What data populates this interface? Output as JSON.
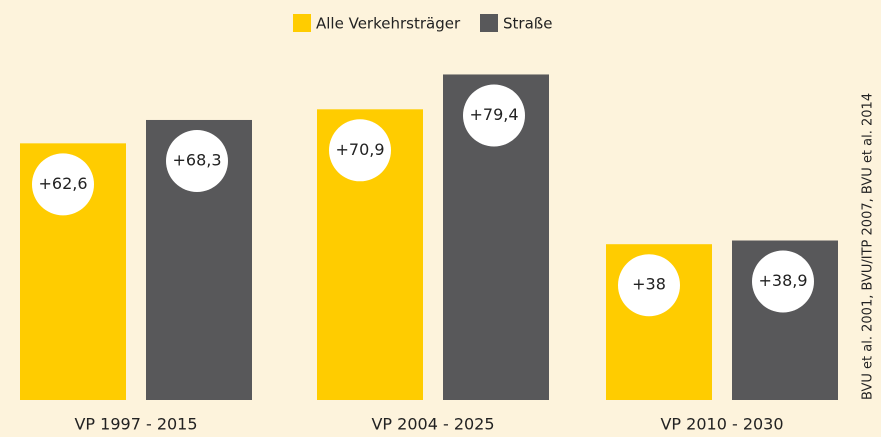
{
  "chart_data": {
    "type": "bar",
    "categories": [
      "VP 1997 - 2015",
      "VP 2004 - 2025",
      "VP 2010 - 2030"
    ],
    "series": [
      {
        "name": "Alle Verkehrsträger",
        "color": "#ffcc00",
        "values": [
          62.6,
          70.9,
          38
        ],
        "value_labels": [
          "+62,6",
          "+70,9",
          "+38"
        ]
      },
      {
        "name": "Straße",
        "color": "#58585a",
        "values": [
          68.3,
          79.4,
          38.9
        ],
        "value_labels": [
          "+68,3",
          "+79,4",
          "+38,9"
        ]
      }
    ],
    "source": "BVU et al. 2001, BVU/ITP 2007, BVU et al. 2014"
  }
}
